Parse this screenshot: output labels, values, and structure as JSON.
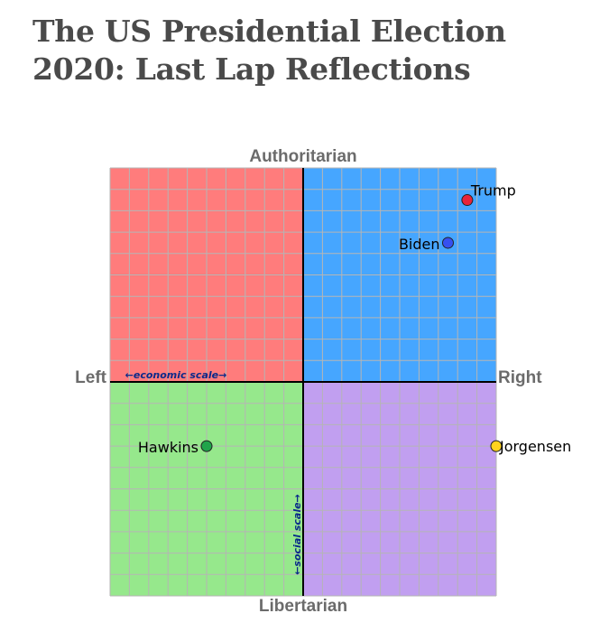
{
  "title": {
    "line1": "The US Presidential Election",
    "line2": "2020: Last Lap Reflections"
  },
  "chart_data": {
    "type": "scatter",
    "axes": {
      "top": "Authoritarian",
      "bottom": "Libertarian",
      "left": "Left",
      "right": "Right",
      "economic_scale": "←economic scale→",
      "social_scale": "←social scale→"
    },
    "xlim": [
      -10,
      10
    ],
    "ylim": [
      -10,
      10
    ],
    "grid": true,
    "quadrant_colors": {
      "authoritarian_left": "#ff7c7c",
      "authoritarian_right": "#46a6ff",
      "libertarian_left": "#96e88c",
      "libertarian_right": "#c19ff0"
    },
    "points": [
      {
        "name": "Trump",
        "x": 8.5,
        "y": 8.5,
        "color": "#e8243a"
      },
      {
        "name": "Biden",
        "x": 7.5,
        "y": 6.5,
        "color": "#3650f0"
      },
      {
        "name": "Hawkins",
        "x": -5.0,
        "y": -3.0,
        "color": "#20a44a"
      },
      {
        "name": "Jorgensen",
        "x": 10.0,
        "y": -3.0,
        "color": "#ffd21e"
      }
    ]
  }
}
